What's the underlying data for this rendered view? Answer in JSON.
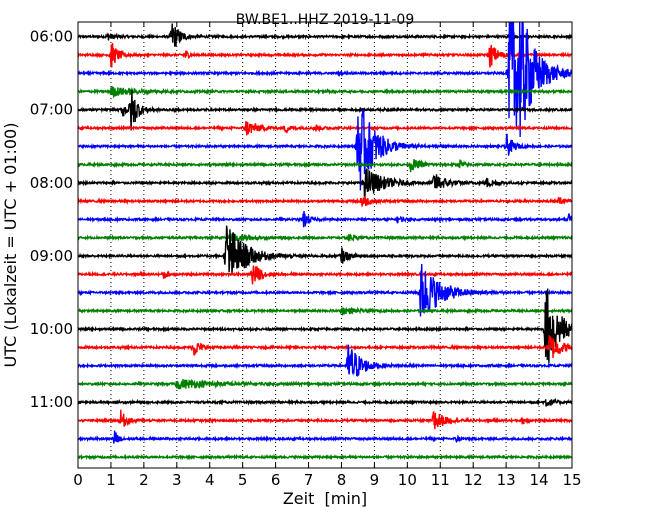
{
  "chart_data": {
    "type": "line",
    "title": "BW.BE1..HHZ 2019-11-09",
    "xlabel": "Zeit  [min]",
    "ylabel": "UTC (Lokalzeit = UTC + 01:00)",
    "xlim": [
      0,
      15
    ],
    "x_ticks": [
      "0",
      "1",
      "2",
      "3",
      "4",
      "5",
      "6",
      "7",
      "8",
      "9",
      "10",
      "11",
      "12",
      "13",
      "14",
      "15"
    ],
    "y_range_hours": [
      5.8,
      11.9
    ],
    "y_ticks": [
      {
        "label": "06:00",
        "hour": 6
      },
      {
        "label": "07:00",
        "hour": 7
      },
      {
        "label": "08:00",
        "hour": 8
      },
      {
        "label": "09:00",
        "hour": 9
      },
      {
        "label": "10:00",
        "hour": 10
      },
      {
        "label": "11:00",
        "hour": 11
      }
    ],
    "trace_interval_min": 15,
    "trace_start_hour": 6,
    "trace_count": 24,
    "trace_colors": [
      "#000000",
      "#ff0000",
      "#0000ff",
      "#008000"
    ],
    "grid": true,
    "traces": [
      {
        "index": 0,
        "events": [
          {
            "t": 2.85,
            "amp": 1.0,
            "dur": 0.5
          },
          {
            "t": 0.9,
            "amp": 0.2,
            "dur": 0.5
          }
        ]
      },
      {
        "index": 1,
        "events": [
          {
            "t": 1.0,
            "amp": 0.9,
            "dur": 0.4
          },
          {
            "t": 3.25,
            "amp": 0.4,
            "dur": 0.2
          },
          {
            "t": 12.5,
            "amp": 0.8,
            "dur": 0.5
          }
        ]
      },
      {
        "index": 2,
        "events": [
          {
            "t": 13.1,
            "amp": 5.0,
            "dur": 1.2
          },
          {
            "t": 13.4,
            "amp": 2.0,
            "dur": 0.6
          }
        ]
      },
      {
        "index": 3,
        "events": [
          {
            "t": 1.0,
            "amp": 0.3,
            "dur": 1.5
          }
        ]
      },
      {
        "index": 4,
        "events": [
          {
            "t": 1.6,
            "amp": 1.5,
            "dur": 0.4
          },
          {
            "t": 1.35,
            "amp": 0.5,
            "dur": 0.3
          }
        ]
      },
      {
        "index": 5,
        "events": [
          {
            "t": 5.1,
            "amp": 0.5,
            "dur": 0.8
          },
          {
            "t": 6.3,
            "amp": 0.3,
            "dur": 0.3
          },
          {
            "t": 7.2,
            "amp": 0.25,
            "dur": 0.3
          }
        ]
      },
      {
        "index": 6,
        "events": [
          {
            "t": 8.5,
            "amp": 3.2,
            "dur": 1.0
          },
          {
            "t": 13.0,
            "amp": 0.8,
            "dur": 0.4
          }
        ]
      },
      {
        "index": 7,
        "events": [
          {
            "t": 10.1,
            "amp": 0.4,
            "dur": 0.6
          },
          {
            "t": 11.6,
            "amp": 0.3,
            "dur": 0.2
          }
        ]
      },
      {
        "index": 8,
        "events": [
          {
            "t": 8.7,
            "amp": 1.0,
            "dur": 1.2
          },
          {
            "t": 10.8,
            "amp": 0.6,
            "dur": 0.8
          },
          {
            "t": 12.4,
            "amp": 0.3,
            "dur": 0.6
          }
        ]
      },
      {
        "index": 9,
        "events": [
          {
            "t": 8.6,
            "amp": 0.5,
            "dur": 0.5
          },
          {
            "t": 14.6,
            "amp": 0.3,
            "dur": 0.4
          }
        ]
      },
      {
        "index": 10,
        "events": [
          {
            "t": 6.85,
            "amp": 0.6,
            "dur": 0.3
          },
          {
            "t": 14.9,
            "amp": 0.5,
            "dur": 0.3
          },
          {
            "t": 9.7,
            "amp": 0.2,
            "dur": 0.4
          }
        ]
      },
      {
        "index": 11,
        "events": [
          {
            "t": 4.6,
            "amp": 0.3,
            "dur": 1.0
          },
          {
            "t": 8.2,
            "amp": 0.2,
            "dur": 0.5
          }
        ]
      },
      {
        "index": 12,
        "events": [
          {
            "t": 4.5,
            "amp": 2.3,
            "dur": 1.1
          },
          {
            "t": 8.0,
            "amp": 0.5,
            "dur": 0.4
          }
        ]
      },
      {
        "index": 13,
        "events": [
          {
            "t": 5.3,
            "amp": 0.8,
            "dur": 0.5
          },
          {
            "t": 2.6,
            "amp": 0.3,
            "dur": 0.3
          }
        ]
      },
      {
        "index": 14,
        "events": [
          {
            "t": 10.4,
            "amp": 2.0,
            "dur": 1.2
          }
        ]
      },
      {
        "index": 15,
        "events": [
          {
            "t": 8.0,
            "amp": 0.2,
            "dur": 1.0
          }
        ]
      },
      {
        "index": 16,
        "events": [
          {
            "t": 14.2,
            "amp": 3.0,
            "dur": 0.8
          }
        ]
      },
      {
        "index": 17,
        "events": [
          {
            "t": 3.5,
            "amp": 0.6,
            "dur": 0.4
          },
          {
            "t": 14.3,
            "amp": 1.0,
            "dur": 0.7
          }
        ]
      },
      {
        "index": 18,
        "events": [
          {
            "t": 8.2,
            "amp": 1.5,
            "dur": 0.8
          }
        ]
      },
      {
        "index": 19,
        "events": [
          {
            "t": 3.0,
            "amp": 0.3,
            "dur": 2.5
          }
        ]
      },
      {
        "index": 20,
        "events": [
          {
            "t": 14.2,
            "amp": 0.3,
            "dur": 0.5
          }
        ]
      },
      {
        "index": 21,
        "events": [
          {
            "t": 1.3,
            "amp": 0.6,
            "dur": 0.4
          },
          {
            "t": 10.8,
            "amp": 0.9,
            "dur": 0.5
          },
          {
            "t": 13.5,
            "amp": 0.3,
            "dur": 0.2
          }
        ]
      },
      {
        "index": 22,
        "events": [
          {
            "t": 1.1,
            "amp": 0.6,
            "dur": 0.2
          },
          {
            "t": 11.5,
            "amp": 0.2,
            "dur": 0.2
          }
        ]
      },
      {
        "index": 23,
        "events": []
      }
    ]
  }
}
